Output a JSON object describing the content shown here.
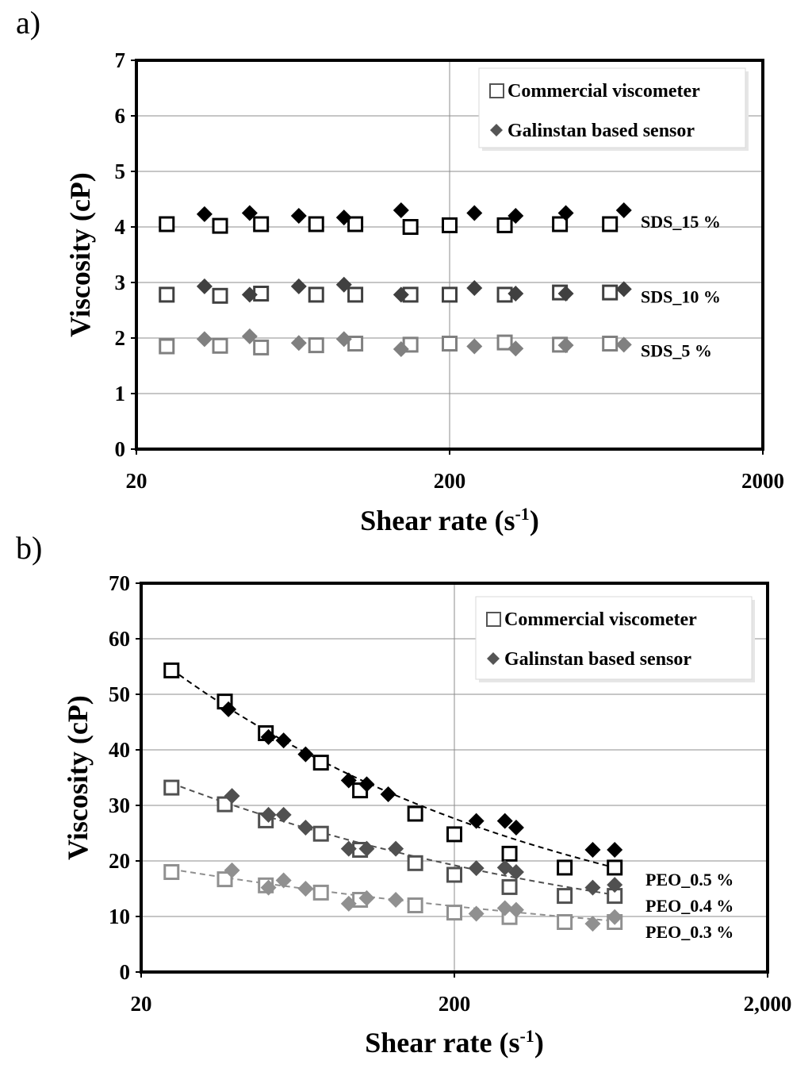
{
  "chart_data": [
    {
      "type": "scatter",
      "panel_label": "a)",
      "xlabel_main": "Shear rate (s",
      "xlabel_sup": "-1",
      "xlabel_close": ")",
      "ylabel": "Viscosity (cP)",
      "xscale": "log",
      "xlim": [
        20,
        2000
      ],
      "ylim": [
        0,
        7
      ],
      "xticks": [
        20,
        200,
        2000
      ],
      "xtick_labels": [
        "20",
        "200",
        "2000"
      ],
      "yticks": [
        0,
        1,
        2,
        3,
        4,
        5,
        6,
        7
      ],
      "ytick_labels": [
        "0",
        "1",
        "2",
        "3",
        "4",
        "5",
        "6",
        "7"
      ],
      "grid": true,
      "legend": {
        "placement": "top-right",
        "entries": [
          {
            "marker": "square",
            "label": "Commercial viscometer"
          },
          {
            "marker": "diamond",
            "label": "Galinstan based sensor"
          }
        ]
      },
      "series": [
        {
          "name": "SDS_15 % (Commercial viscometer)",
          "marker": "square",
          "color": "#000000",
          "x": [
            25,
            37,
            50,
            75,
            100,
            150,
            200,
            300,
            450,
            650
          ],
          "y": [
            4.05,
            4.02,
            4.05,
            4.05,
            4.05,
            4.0,
            4.03,
            4.03,
            4.05,
            4.05
          ]
        },
        {
          "name": "SDS_15 % (Galinstan based sensor)",
          "marker": "diamond",
          "color": "#000000",
          "x": [
            33,
            46,
            66,
            92,
            140,
            240,
            325,
            470,
            720
          ],
          "y": [
            4.23,
            4.25,
            4.2,
            4.17,
            4.3,
            4.25,
            4.2,
            4.25,
            4.3
          ]
        },
        {
          "name": "SDS_10 % (Commercial viscometer)",
          "marker": "square",
          "color": "#404040",
          "x": [
            25,
            37,
            50,
            75,
            100,
            150,
            200,
            300,
            450,
            650
          ],
          "y": [
            2.78,
            2.76,
            2.8,
            2.78,
            2.78,
            2.78,
            2.78,
            2.78,
            2.82,
            2.82
          ]
        },
        {
          "name": "SDS_10 % (Galinstan based sensor)",
          "marker": "diamond",
          "color": "#404040",
          "x": [
            33,
            46,
            66,
            92,
            140,
            240,
            325,
            470,
            720
          ],
          "y": [
            2.93,
            2.78,
            2.93,
            2.96,
            2.78,
            2.9,
            2.8,
            2.8,
            2.88
          ]
        },
        {
          "name": "SDS_5 % (Commercial viscometer)",
          "marker": "square",
          "color": "#808080",
          "x": [
            25,
            37,
            50,
            75,
            100,
            150,
            200,
            300,
            450,
            650
          ],
          "y": [
            1.85,
            1.86,
            1.83,
            1.87,
            1.9,
            1.88,
            1.9,
            1.92,
            1.88,
            1.9
          ]
        },
        {
          "name": "SDS_5 % (Galinstan based sensor)",
          "marker": "diamond",
          "color": "#808080",
          "x": [
            33,
            46,
            66,
            92,
            140,
            240,
            325,
            470,
            720
          ],
          "y": [
            1.98,
            2.03,
            1.91,
            1.98,
            1.8,
            1.85,
            1.81,
            1.87,
            1.88
          ]
        }
      ],
      "annotations": [
        {
          "text": "SDS_15 %",
          "series": "SDS_15 %",
          "y": 4.1
        },
        {
          "text": "SDS_10 %",
          "series": "SDS_10 %",
          "y": 2.75
        },
        {
          "text": "SDS_5 %",
          "series": "SDS_5 %",
          "y": 1.78
        }
      ]
    },
    {
      "type": "scatter",
      "panel_label": "b)",
      "xlabel_main": "Shear rate (s",
      "xlabel_sup": "-1",
      "xlabel_close": ")",
      "ylabel": "Viscosity (cP)",
      "xscale": "log",
      "xlim": [
        20,
        2000
      ],
      "ylim": [
        0,
        70
      ],
      "xticks": [
        20,
        200,
        2000
      ],
      "xtick_labels": [
        "20",
        "200",
        "2,000"
      ],
      "yticks": [
        0,
        10,
        20,
        30,
        40,
        50,
        60,
        70
      ],
      "ytick_labels": [
        "0",
        "10",
        "20",
        "30",
        "40",
        "50",
        "60",
        "70"
      ],
      "grid": true,
      "legend": {
        "placement": "top-right",
        "entries": [
          {
            "marker": "square",
            "label": "Commercial viscometer"
          },
          {
            "marker": "diamond",
            "label": "Galinstan based sensor"
          }
        ]
      },
      "series": [
        {
          "name": "PEO_0.5 % (Commercial viscometer)",
          "marker": "square",
          "color": "#000000",
          "x": [
            25,
            37,
            50,
            75,
            100,
            150,
            200,
            300,
            450,
            650
          ],
          "y": [
            54.3,
            48.7,
            43.0,
            37.7,
            32.7,
            28.5,
            24.8,
            21.3,
            18.8,
            18.8
          ],
          "trend": {
            "x": [
              25,
              650
            ],
            "y": [
              54.5,
              18.8
            ]
          }
        },
        {
          "name": "PEO_0.5 % (Galinstan based sensor)",
          "marker": "diamond",
          "color": "#000000",
          "x": [
            38,
            51,
            57,
            67,
            92,
            105,
            123,
            235,
            290,
            315,
            553,
            650
          ],
          "y": [
            47.3,
            42.3,
            41.7,
            39.2,
            34.5,
            33.8,
            32.0,
            27.2,
            27.2,
            26.0,
            22.0,
            22.0
          ]
        },
        {
          "name": "PEO_0.4 % (Commercial viscometer)",
          "marker": "square",
          "color": "#505050",
          "x": [
            25,
            37,
            50,
            75,
            100,
            150,
            200,
            300,
            450,
            650
          ],
          "y": [
            33.2,
            30.2,
            27.3,
            24.9,
            22.0,
            19.6,
            17.5,
            15.3,
            13.7,
            13.7
          ],
          "trend": {
            "x": [
              25,
              650
            ],
            "y": [
              34.0,
              13.9
            ]
          }
        },
        {
          "name": "PEO_0.4 % (Galinstan based sensor)",
          "marker": "diamond",
          "color": "#505050",
          "x": [
            39,
            51,
            57,
            67,
            92,
            105,
            130,
            235,
            290,
            315,
            553,
            650
          ],
          "y": [
            31.7,
            28.3,
            28.3,
            26.0,
            22.2,
            22.2,
            22.2,
            18.7,
            18.8,
            18.0,
            15.2,
            15.7
          ]
        },
        {
          "name": "PEO_0.3 % (Commercial viscometer)",
          "marker": "square",
          "color": "#909090",
          "x": [
            25,
            37,
            50,
            75,
            100,
            150,
            200,
            300,
            450,
            650
          ],
          "y": [
            18.0,
            16.7,
            15.6,
            14.3,
            13.0,
            12.0,
            10.7,
            9.9,
            9.0,
            9.0
          ],
          "trend": {
            "x": [
              25,
              650
            ],
            "y": [
              18.5,
              9.2
            ]
          }
        },
        {
          "name": "PEO_0.3 % (Galinstan based sensor)",
          "marker": "diamond",
          "color": "#909090",
          "x": [
            39,
            51,
            57,
            67,
            92,
            105,
            130,
            235,
            290,
            315,
            553,
            650
          ],
          "y": [
            18.3,
            15.2,
            16.5,
            15.0,
            12.3,
            13.3,
            13.0,
            10.5,
            11.5,
            11.2,
            8.7,
            9.9
          ]
        }
      ],
      "annotations": [
        {
          "text": "PEO_0.5 %",
          "series": "PEO_0.5 %",
          "y": 16.7
        },
        {
          "text": "PEO_0.4 %",
          "series": "PEO_0.4 %",
          "y": 12.0
        },
        {
          "text": "PEO_0.3 %",
          "series": "PEO_0.3 %",
          "y": 7.3
        }
      ]
    }
  ]
}
